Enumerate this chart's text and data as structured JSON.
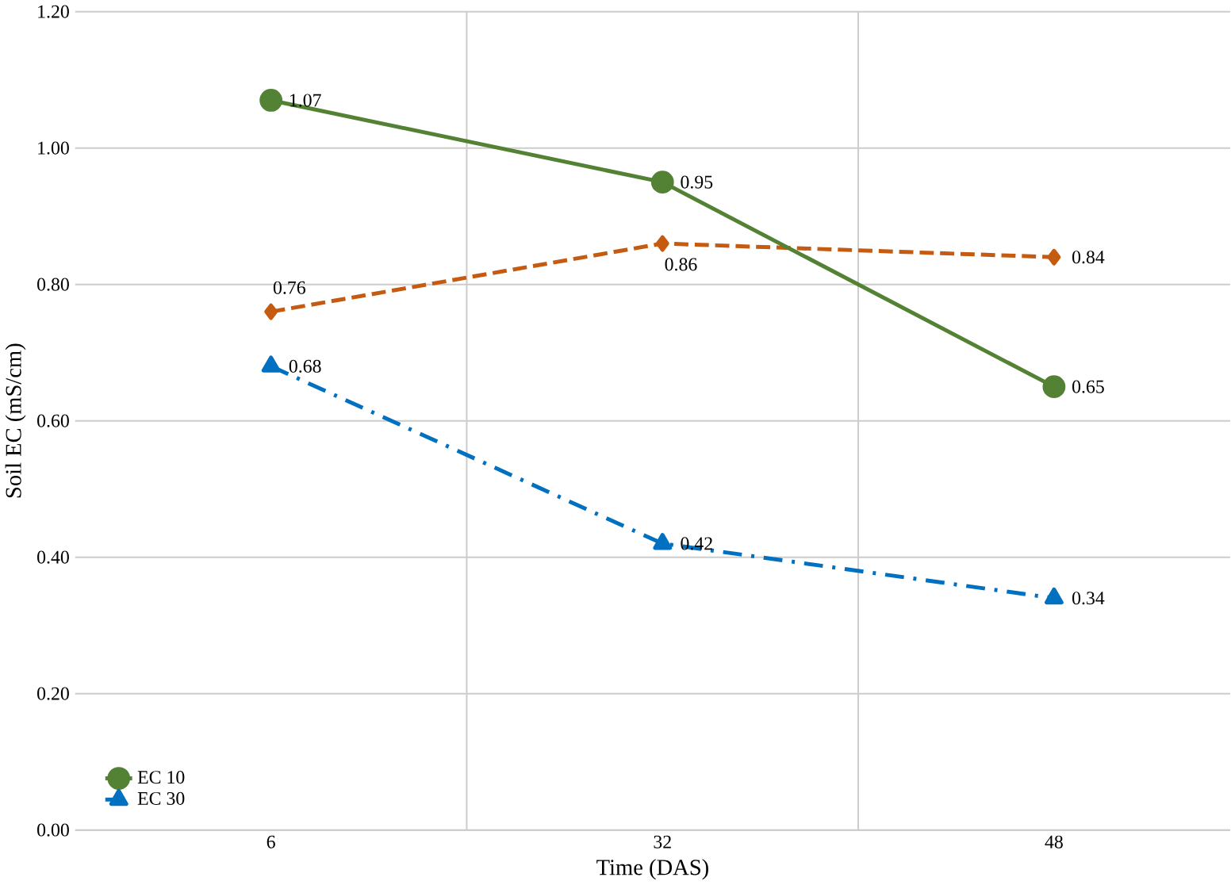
{
  "chart_data": {
    "type": "line",
    "xlabel": "Time (DAS)",
    "ylabel": "Soil EC (mS/cm)",
    "categories": [
      "6",
      "32",
      "48"
    ],
    "series": [
      {
        "color": "#c55a11",
        "values": [
          0.76,
          0.86,
          0.84
        ],
        "value_labels": [
          "0.76",
          "0.86",
          "0.84"
        ],
        "marker": "diamond",
        "line_style": "dashed"
      },
      {
        "name": "EC 10",
        "color": "#548235",
        "values": [
          1.07,
          0.95,
          0.65
        ],
        "value_labels": [
          "1.07",
          "0.95",
          "0.65"
        ],
        "marker": "circle",
        "line_style": "solid"
      },
      {
        "name": "EC 30",
        "color": "#0070c0",
        "values": [
          0.68,
          0.42,
          0.34
        ],
        "value_labels": [
          "0.68",
          "0.42",
          "0.34"
        ],
        "marker": "triangle",
        "line_style": "dashdot"
      }
    ],
    "ylim": [
      0,
      1.2
    ],
    "yticks": [
      {
        "value": 0,
        "label": "0.00"
      },
      {
        "value": 0.2,
        "label": "0.20"
      },
      {
        "value": 0.4,
        "label": "0.40"
      },
      {
        "value": 0.6,
        "label": "0.60"
      },
      {
        "value": 0.8,
        "label": "0.80"
      },
      {
        "value": 1.0,
        "label": "1.00"
      },
      {
        "value": 1.2,
        "label": "1.20"
      }
    ],
    "grid": true,
    "legend": "bottom left"
  }
}
